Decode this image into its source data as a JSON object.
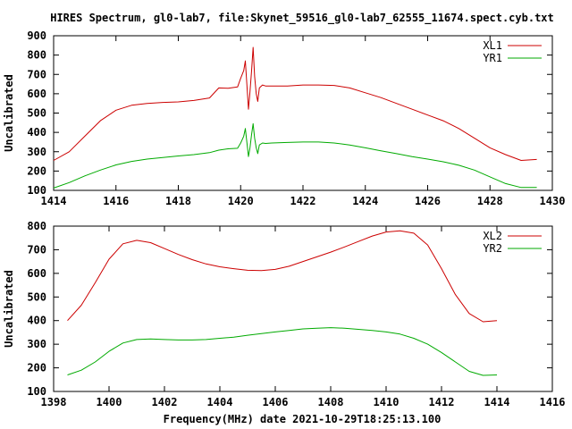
{
  "title": "HIRES Spectrum, gl0-lab7, file:Skynet_59516_gl0-lab7_62555_11674.spect.cyb.txt",
  "xlabel": "Frequency(MHz) date 2021-10-29T18:25:13.100",
  "chart_data": [
    {
      "type": "line",
      "ylabel": "Uncalibrated",
      "xlim": [
        1414,
        1430
      ],
      "ylim": [
        100,
        900
      ],
      "xticks": [
        "1414",
        "1416",
        "1418",
        "1420",
        "1422",
        "1424",
        "1426",
        "1428",
        "1430"
      ],
      "yticks": [
        "100",
        "200",
        "300",
        "400",
        "500",
        "600",
        "700",
        "800",
        "900"
      ],
      "legend_position": "top-right",
      "series": [
        {
          "name": "XL1",
          "color": "#cc0000",
          "x": [
            1414,
            1414.5,
            1415,
            1415.5,
            1416,
            1416.5,
            1417,
            1417.5,
            1418,
            1418.5,
            1419,
            1419.3,
            1419.6,
            1419.9,
            1420.0,
            1420.1,
            1420.15,
            1420.2,
            1420.25,
            1420.3,
            1420.35,
            1420.4,
            1420.45,
            1420.5,
            1420.55,
            1420.6,
            1420.7,
            1420.8,
            1421,
            1421.5,
            1422,
            1422.5,
            1423,
            1423.5,
            1424,
            1424.5,
            1425,
            1425.5,
            1426,
            1426.5,
            1427,
            1427.5,
            1428,
            1428.5,
            1429,
            1429.5
          ],
          "values": [
            255,
            300,
            380,
            460,
            515,
            540,
            550,
            555,
            558,
            565,
            578,
            630,
            628,
            635,
            680,
            720,
            770,
            650,
            520,
            610,
            720,
            840,
            690,
            600,
            560,
            630,
            645,
            640,
            640,
            640,
            645,
            645,
            643,
            630,
            605,
            580,
            550,
            520,
            490,
            460,
            420,
            370,
            320,
            285,
            255,
            260
          ]
        },
        {
          "name": "YR1",
          "color": "#00aa00",
          "x": [
            1414,
            1414.5,
            1415,
            1415.5,
            1416,
            1416.5,
            1417,
            1417.5,
            1418,
            1418.5,
            1419,
            1419.3,
            1419.6,
            1419.9,
            1420.0,
            1420.1,
            1420.15,
            1420.2,
            1420.25,
            1420.3,
            1420.35,
            1420.4,
            1420.45,
            1420.5,
            1420.55,
            1420.6,
            1420.7,
            1420.8,
            1421,
            1421.5,
            1422,
            1422.5,
            1423,
            1423.5,
            1424,
            1424.5,
            1425,
            1425.5,
            1426,
            1426.5,
            1427,
            1427.5,
            1428,
            1428.5,
            1429,
            1429.5
          ],
          "values": [
            112,
            140,
            175,
            205,
            232,
            250,
            262,
            270,
            278,
            285,
            295,
            308,
            315,
            318,
            345,
            380,
            420,
            350,
            275,
            320,
            390,
            445,
            370,
            320,
            290,
            335,
            345,
            343,
            345,
            348,
            350,
            350,
            345,
            335,
            320,
            305,
            290,
            275,
            262,
            248,
            230,
            205,
            170,
            135,
            115,
            115
          ]
        }
      ]
    },
    {
      "type": "line",
      "ylabel": "Uncalibrated",
      "xlim": [
        1398,
        1416
      ],
      "ylim": [
        100,
        800
      ],
      "xticks": [
        "1398",
        "1400",
        "1402",
        "1404",
        "1406",
        "1408",
        "1410",
        "1412",
        "1414",
        "1416"
      ],
      "yticks": [
        "100",
        "200",
        "300",
        "400",
        "500",
        "600",
        "700",
        "800"
      ],
      "legend_position": "top-right",
      "series": [
        {
          "name": "XL2",
          "color": "#cc0000",
          "x": [
            1398.5,
            1399,
            1399.5,
            1400,
            1400.5,
            1401,
            1401.5,
            1402,
            1402.5,
            1403,
            1403.5,
            1404,
            1404.5,
            1405,
            1405.5,
            1406,
            1406.5,
            1407,
            1407.5,
            1408,
            1408.5,
            1409,
            1409.5,
            1410,
            1410.5,
            1411,
            1411.5,
            1412,
            1412.5,
            1413,
            1413.5,
            1414
          ],
          "values": [
            400,
            465,
            560,
            660,
            725,
            740,
            730,
            705,
            680,
            658,
            640,
            628,
            620,
            613,
            612,
            617,
            630,
            650,
            670,
            690,
            712,
            735,
            758,
            775,
            780,
            770,
            720,
            620,
            510,
            430,
            395,
            400
          ]
        },
        {
          "name": "YR2",
          "color": "#00aa00",
          "x": [
            1398.5,
            1399,
            1399.5,
            1400,
            1400.5,
            1401,
            1401.5,
            1402,
            1402.5,
            1403,
            1403.5,
            1404,
            1404.5,
            1405,
            1405.5,
            1406,
            1406.5,
            1407,
            1407.5,
            1408,
            1408.5,
            1409,
            1409.5,
            1410,
            1410.5,
            1411,
            1411.5,
            1412,
            1412.5,
            1413,
            1413.5,
            1414
          ],
          "values": [
            170,
            190,
            225,
            270,
            305,
            320,
            322,
            320,
            318,
            318,
            320,
            325,
            330,
            338,
            345,
            352,
            358,
            365,
            368,
            370,
            368,
            363,
            358,
            352,
            343,
            325,
            300,
            265,
            225,
            185,
            168,
            170
          ]
        }
      ]
    }
  ]
}
